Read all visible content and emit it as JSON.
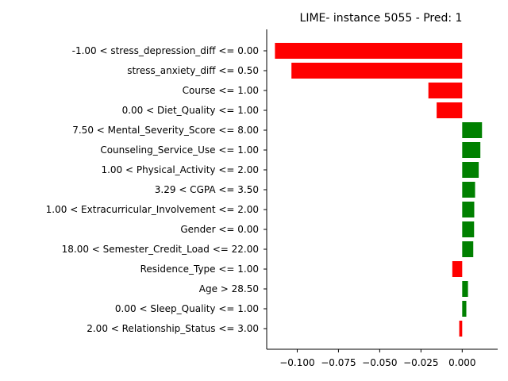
{
  "chart_data": {
    "type": "bar",
    "orientation": "horizontal",
    "title": "LIME- instance 5055 - Pred: 1",
    "xlabel": "",
    "ylabel": "",
    "xlim": [
      -0.1185,
      0.0215
    ],
    "xticks": [
      -0.1,
      -0.075,
      -0.05,
      -0.025,
      0.0
    ],
    "xtick_labels": [
      "−0.100",
      "−0.075",
      "−0.050",
      "−0.025",
      "0.000"
    ],
    "grid": false,
    "categories": [
      "-1.00 < stress_depression_diff <= 0.00",
      "stress_anxiety_diff <= 0.50",
      "Course <= 1.00",
      "0.00 < Diet_Quality <= 1.00",
      "7.50 < Mental_Severity_Score <= 8.00",
      "Counseling_Service_Use <= 1.00",
      "1.00 < Physical_Activity <= 2.00",
      "3.29 < CGPA <= 3.50",
      "1.00 < Extracurricular_Involvement <= 2.00",
      "Gender <= 0.00",
      "18.00 < Semester_Credit_Load <= 22.00",
      "Residence_Type <= 1.00",
      "Age > 28.50",
      "0.00 < Sleep_Quality <= 1.00",
      "2.00 < Relationship_Status <= 3.00"
    ],
    "values": [
      -0.1135,
      -0.1035,
      -0.0205,
      -0.0155,
      0.012,
      0.011,
      0.01,
      0.0078,
      0.0073,
      0.0072,
      0.0067,
      -0.006,
      0.0035,
      0.0025,
      -0.0018
    ],
    "colors": {
      "positive": "#008000",
      "negative": "#ff0000"
    }
  }
}
